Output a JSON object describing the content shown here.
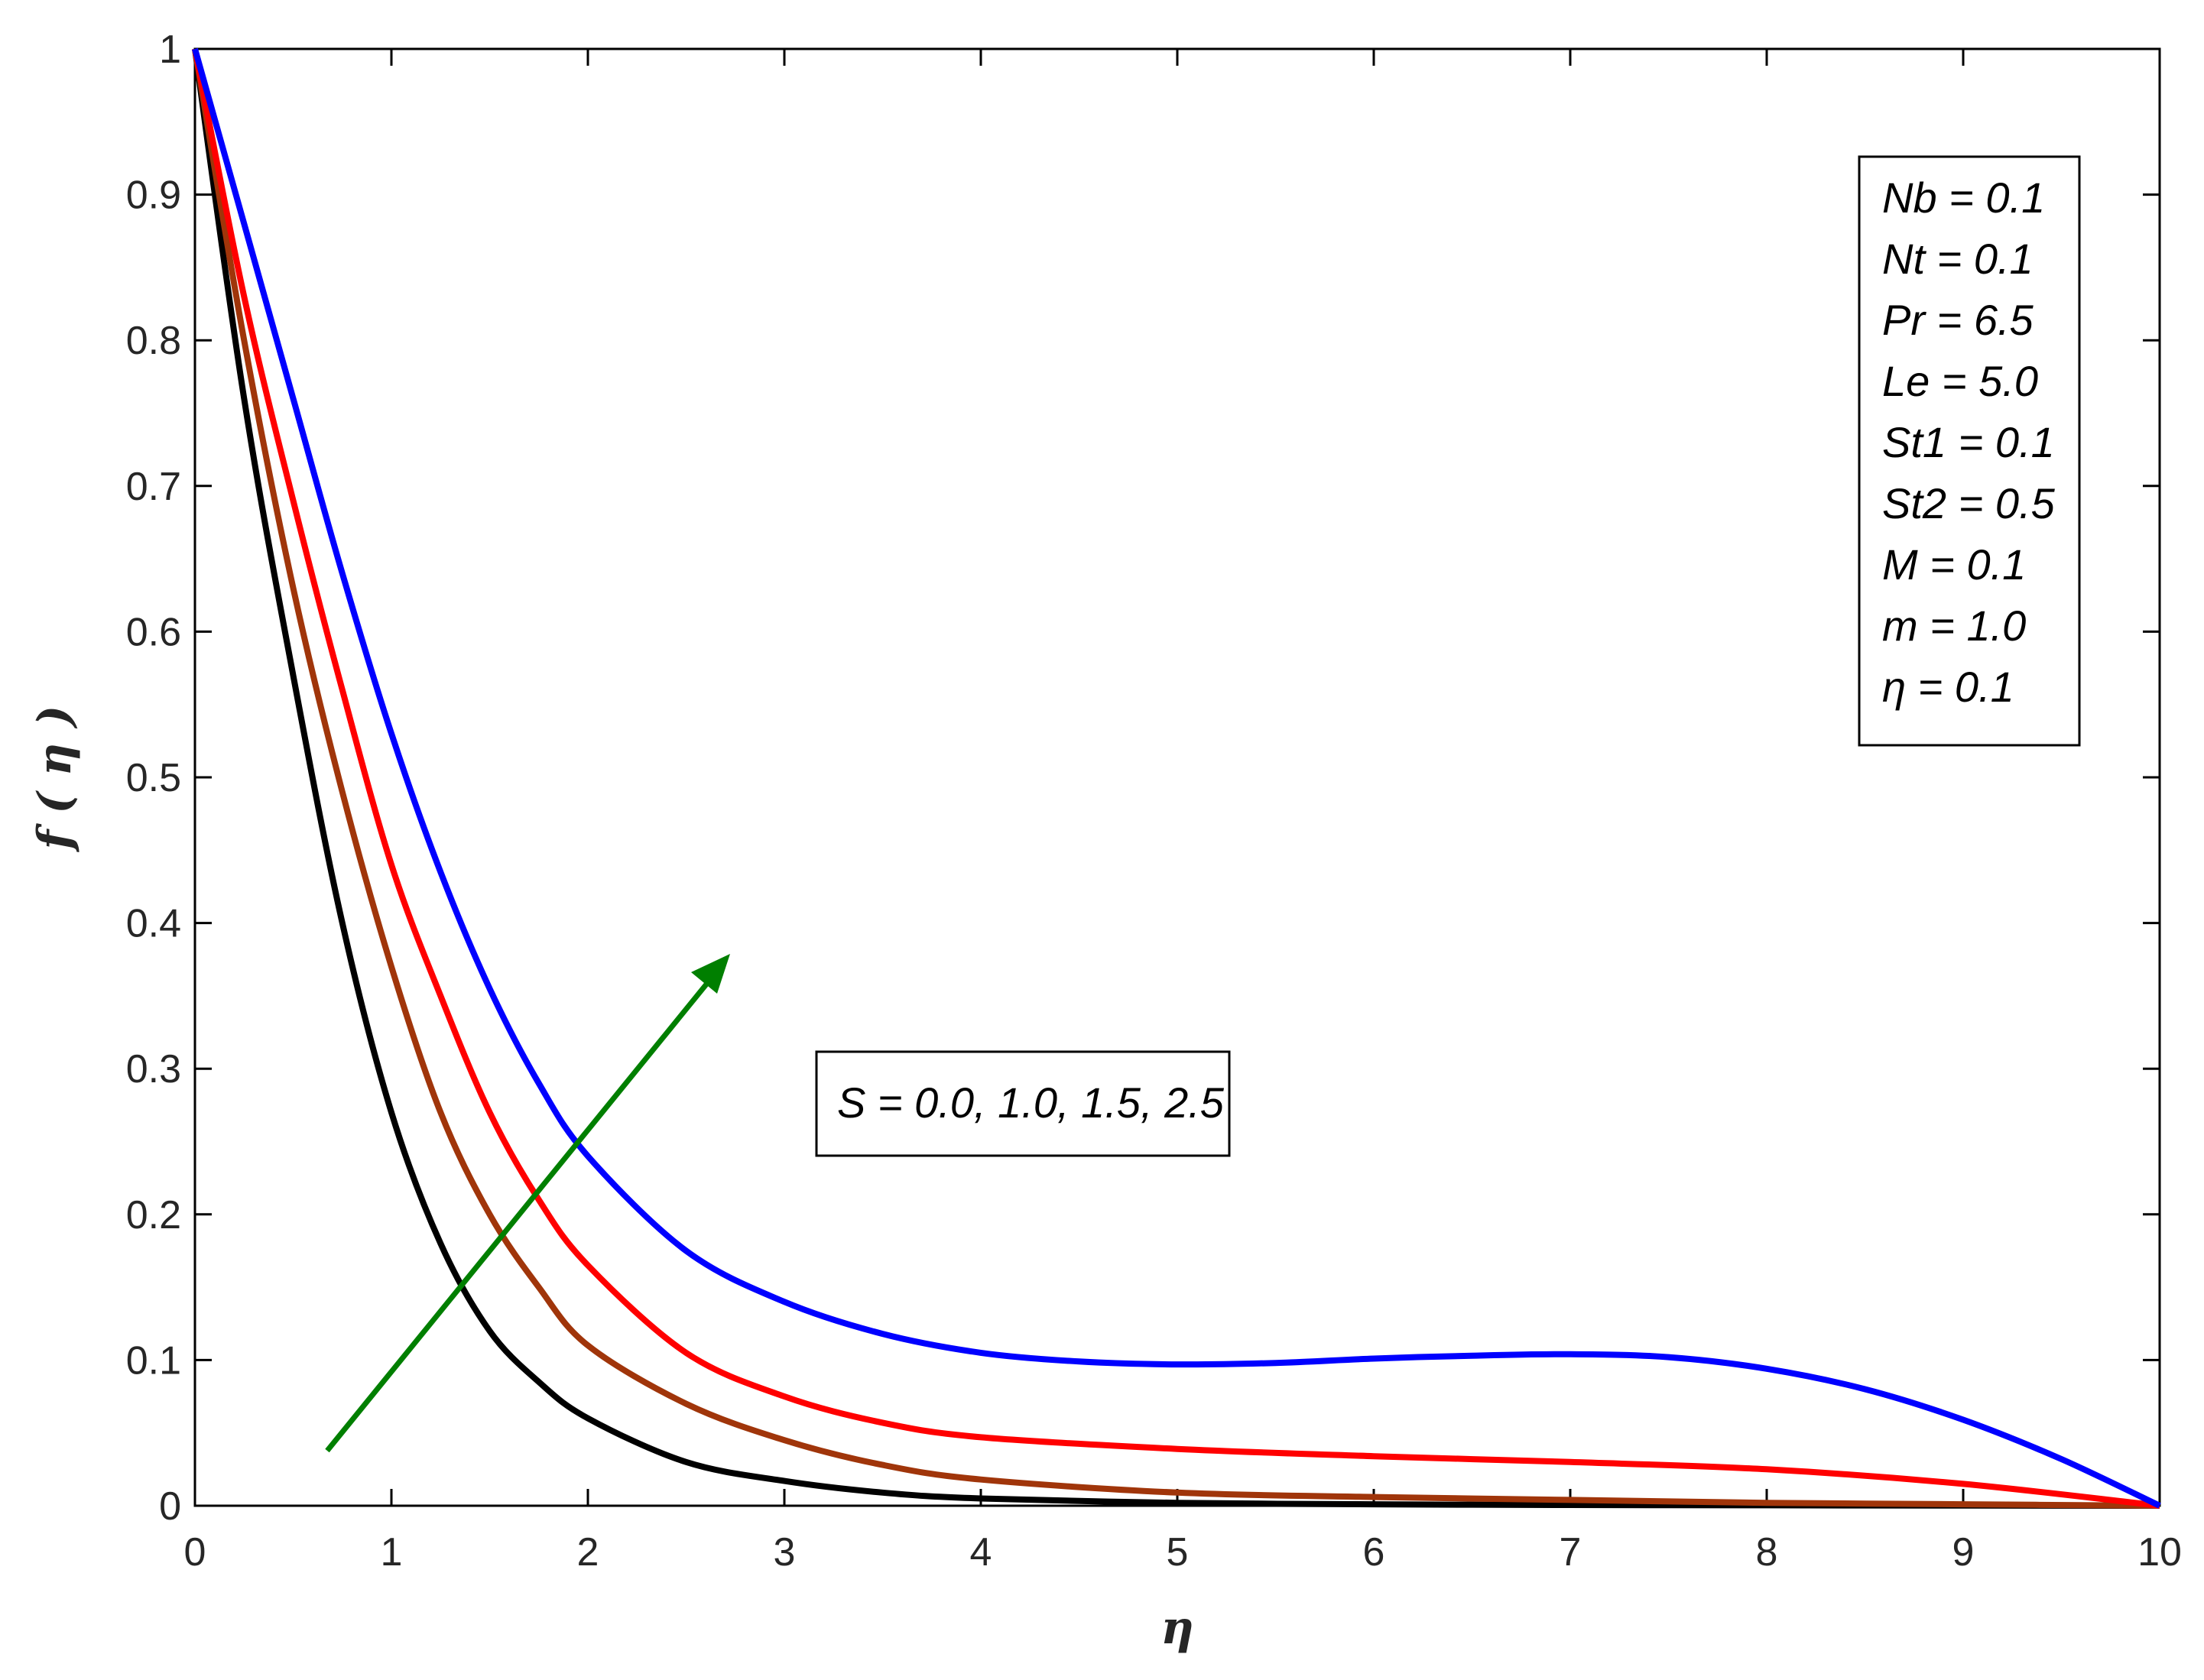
{
  "chart_data": {
    "type": "line",
    "xlabel": "η",
    "ylabel": "f ( η )",
    "xlim": [
      0,
      10
    ],
    "ylim": [
      0,
      1
    ],
    "xticks": [
      0,
      1,
      2,
      3,
      4,
      5,
      6,
      7,
      8,
      9,
      10
    ],
    "yticks": [
      0,
      0.1,
      0.2,
      0.3,
      0.4,
      0.5,
      0.6,
      0.7,
      0.8,
      0.9,
      1
    ],
    "ytick_labels": [
      "0",
      "0.1",
      "0.2",
      "0.3",
      "0.4",
      "0.5",
      "0.6",
      "0.7",
      "0.8",
      "0.9",
      "1"
    ],
    "xtick_labels": [
      "0",
      "1",
      "2",
      "3",
      "4",
      "5",
      "6",
      "7",
      "8",
      "9",
      "10"
    ],
    "grid": false,
    "series": [
      {
        "color": "#000000",
        "x": [
          0,
          0.25,
          0.5,
          0.75,
          1.0,
          1.25,
          1.5,
          1.75,
          2.0,
          2.5,
          3.0,
          3.5,
          4.0,
          5.0,
          6.0,
          7.0,
          8.0,
          9.0,
          10.0
        ],
        "y": [
          1.0,
          0.76,
          0.57,
          0.4,
          0.27,
          0.18,
          0.12,
          0.085,
          0.06,
          0.03,
          0.017,
          0.009,
          0.005,
          0.002,
          0.001,
          0.0005,
          0.0003,
          0.0001,
          0.0
        ]
      },
      {
        "color": "#A0350A",
        "x": [
          0,
          0.25,
          0.5,
          0.75,
          1.0,
          1.25,
          1.5,
          1.75,
          2.0,
          2.5,
          3.0,
          3.5,
          4.0,
          5.0,
          6.0,
          7.0,
          8.0,
          9.0,
          10.0
        ],
        "y": [
          1.0,
          0.8,
          0.63,
          0.49,
          0.37,
          0.27,
          0.2,
          0.15,
          0.11,
          0.07,
          0.045,
          0.028,
          0.018,
          0.009,
          0.006,
          0.004,
          0.002,
          0.001,
          0.0
        ]
      },
      {
        "color": "#FF0000",
        "x": [
          0,
          0.25,
          0.5,
          0.75,
          1.0,
          1.25,
          1.5,
          1.75,
          2.0,
          2.5,
          3.0,
          3.5,
          4.0,
          5.0,
          6.0,
          7.0,
          8.0,
          9.0,
          10.0
        ],
        "y": [
          1.0,
          0.83,
          0.69,
          0.56,
          0.44,
          0.35,
          0.27,
          0.21,
          0.165,
          0.105,
          0.075,
          0.057,
          0.047,
          0.039,
          0.034,
          0.03,
          0.025,
          0.015,
          0.0
        ]
      },
      {
        "color": "#0000FF",
        "x": [
          0,
          0.25,
          0.5,
          0.75,
          1.0,
          1.25,
          1.5,
          1.75,
          2.0,
          2.5,
          3.0,
          3.5,
          4.0,
          4.5,
          5.0,
          5.5,
          6.0,
          6.5,
          7.0,
          7.5,
          8.0,
          8.5,
          9.0,
          9.5,
          10.0
        ],
        "y": [
          1.0,
          0.88,
          0.76,
          0.64,
          0.53,
          0.435,
          0.355,
          0.29,
          0.24,
          0.175,
          0.14,
          0.118,
          0.105,
          0.099,
          0.097,
          0.098,
          0.101,
          0.103,
          0.104,
          0.102,
          0.094,
          0.08,
          0.059,
          0.032,
          0.0
        ]
      }
    ],
    "annotations": {
      "params": [
        "Nb  = 0.1",
        "Nt  = 0.1",
        "Pr = 6.5",
        "Le = 5.0",
        "St1 = 0.1",
        "St2 = 0.5",
        "M  = 0.1",
        "m = 1.0",
        "η = 0.1"
      ],
      "s_label": "S = 0.0, 1.0, 1.5, 2.5",
      "arrow_color": "#007F00"
    }
  }
}
